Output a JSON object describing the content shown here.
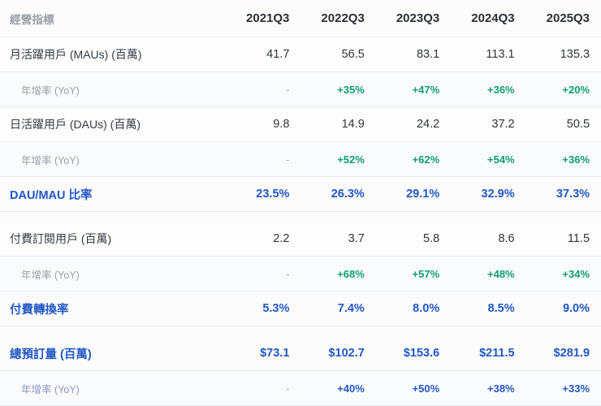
{
  "chart_data": {
    "type": "table",
    "title": "經營指標",
    "columns": [
      "2021Q3",
      "2022Q3",
      "2023Q3",
      "2024Q3",
      "2025Q3"
    ],
    "rows": [
      {
        "label": "月活躍用戶 (MAUs) (百萬)",
        "type": "metric",
        "gap": false,
        "values": [
          "41.7",
          "56.5",
          "83.1",
          "113.1",
          "135.3"
        ]
      },
      {
        "label": "年增率 (YoY)",
        "type": "yoy",
        "gap": false,
        "values": [
          "-",
          "+35%",
          "+47%",
          "+36%",
          "+20%"
        ]
      },
      {
        "label": "日活躍用戶 (DAUs) (百萬)",
        "type": "metric",
        "gap": false,
        "values": [
          "9.8",
          "14.9",
          "24.2",
          "37.2",
          "50.5"
        ]
      },
      {
        "label": "年增率 (YoY)",
        "type": "yoy",
        "gap": false,
        "values": [
          "-",
          "+52%",
          "+62%",
          "+54%",
          "+36%"
        ]
      },
      {
        "label": "DAU/MAU 比率",
        "type": "highlight",
        "gap": false,
        "values": [
          "23.5%",
          "26.3%",
          "29.1%",
          "32.9%",
          "37.3%"
        ]
      },
      {
        "label": "付費訂閱用戶 (百萬)",
        "type": "metric",
        "gap": true,
        "values": [
          "2.2",
          "3.7",
          "5.8",
          "8.6",
          "11.5"
        ]
      },
      {
        "label": "年增率 (YoY)",
        "type": "yoy",
        "gap": false,
        "values": [
          "-",
          "+68%",
          "+57%",
          "+48%",
          "+34%"
        ]
      },
      {
        "label": "付費轉換率",
        "type": "highlight",
        "gap": false,
        "values": [
          "5.3%",
          "7.4%",
          "8.0%",
          "8.5%",
          "9.0%"
        ]
      },
      {
        "label": "總預訂量 (百萬)",
        "type": "highlight",
        "gap": true,
        "values": [
          "$73.1",
          "$102.7",
          "$153.6",
          "$211.5",
          "$281.9"
        ]
      },
      {
        "label": "年增率 (YoY)",
        "type": "yoy-blue",
        "gap": false,
        "values": [
          "-",
          "+40%",
          "+50%",
          "+38%",
          "+33%"
        ]
      }
    ]
  },
  "colors": {
    "accent_blue": "#2257c4",
    "growth_green": "#0f9e6e",
    "muted_gray": "#99a0a9",
    "border_color": "#e9ecef",
    "page_bg": "#fcfcfd"
  }
}
